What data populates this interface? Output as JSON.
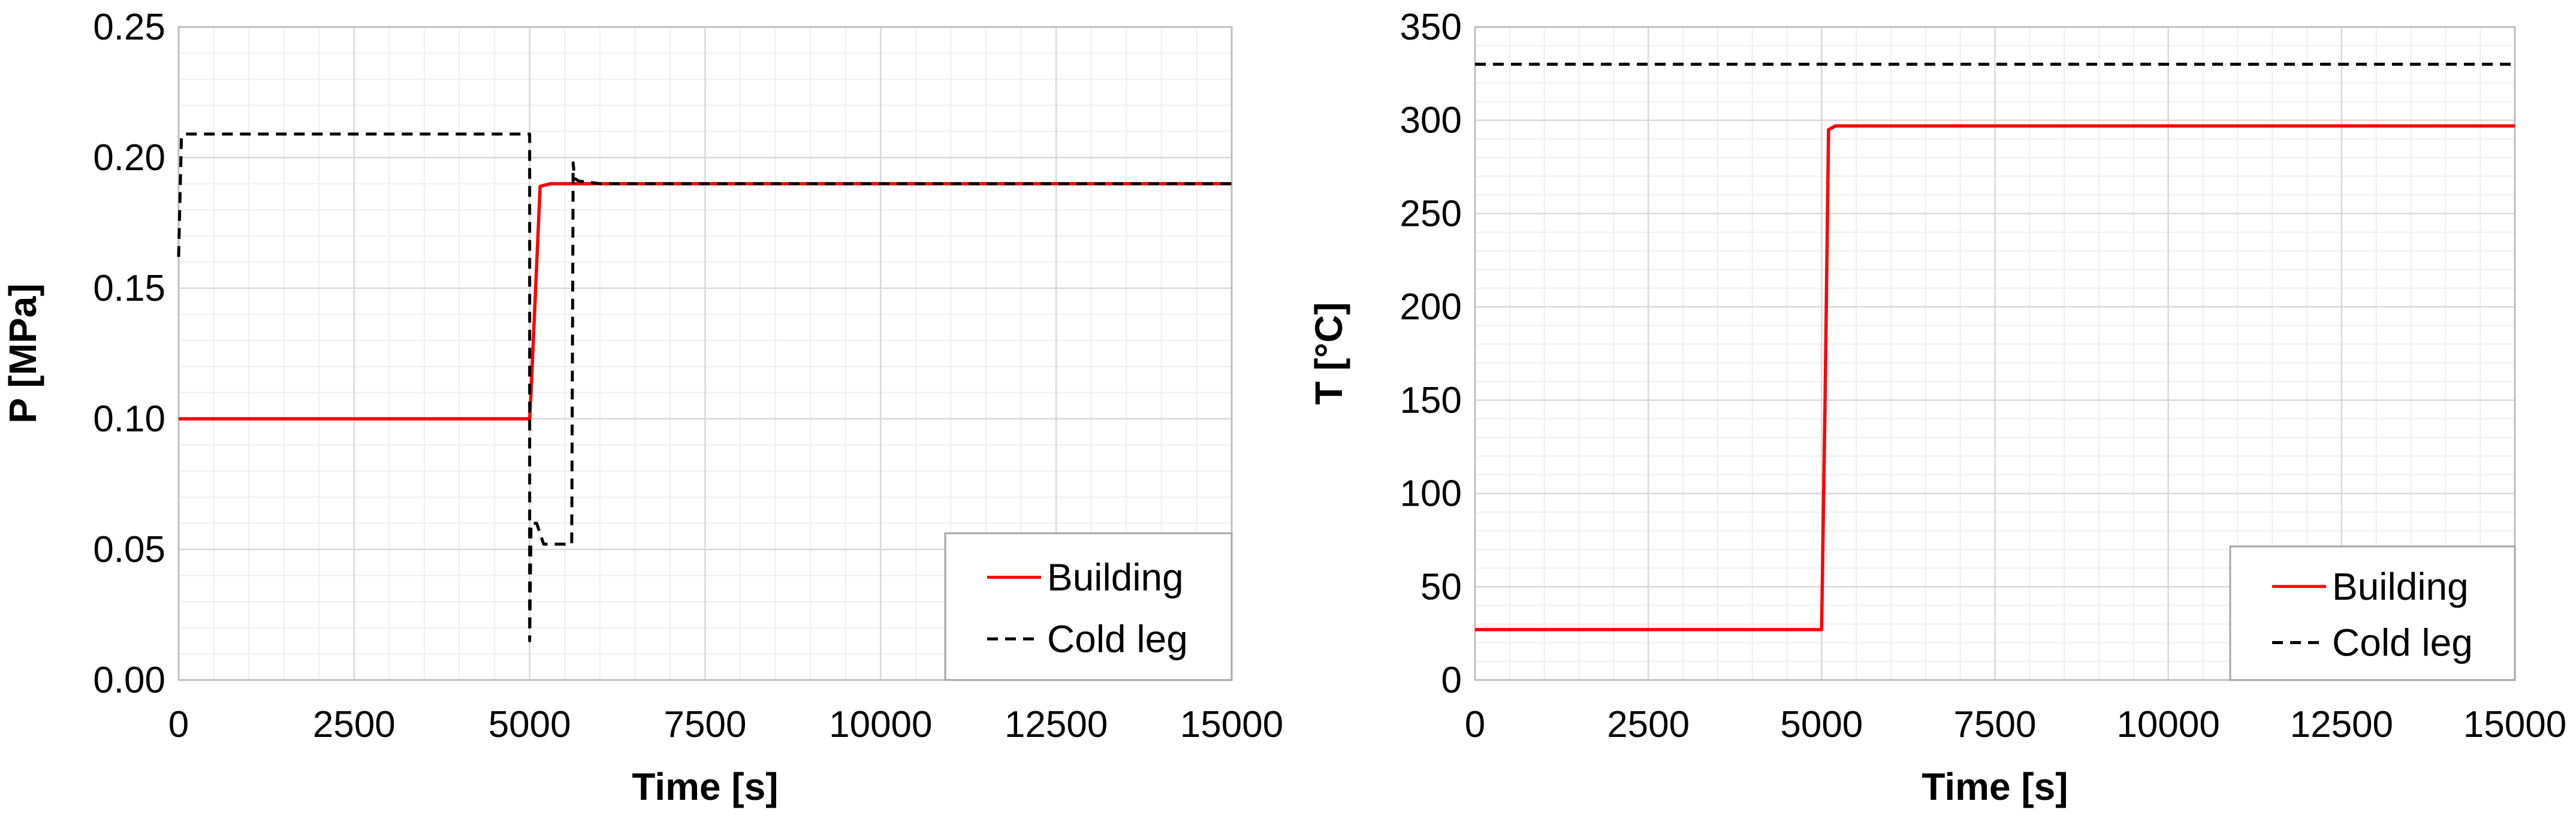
{
  "chart_data": [
    {
      "type": "line",
      "xlabel": "Time [s]",
      "ylabel": "P [MPa]",
      "xlim": [
        0,
        15000
      ],
      "ylim": [
        0,
        0.25
      ],
      "x_ticks": [
        0,
        2500,
        5000,
        7500,
        10000,
        12500,
        15000
      ],
      "x_tick_labels": [
        "0",
        "2500",
        "5000",
        "7500",
        "10000",
        "12500",
        "15000"
      ],
      "y_ticks": [
        0,
        0.05,
        0.1,
        0.15,
        0.2,
        0.25
      ],
      "y_tick_labels": [
        "0.00",
        "0.05",
        "0.10",
        "0.15",
        "0.20",
        "0.25"
      ],
      "grid": true,
      "legend_position": "bottom-right",
      "series": [
        {
          "name": "Building",
          "color": "#ff0000",
          "style": "solid",
          "x": [
            0,
            5000,
            5020,
            5150,
            5300,
            15000
          ],
          "y": [
            0.1,
            0.1,
            0.11,
            0.189,
            0.19,
            0.19
          ]
        },
        {
          "name": "Cold leg",
          "color": "#000000",
          "style": "dashed",
          "x": [
            0,
            40,
            80,
            5000,
            5000,
            5020,
            5100,
            5200,
            5300,
            5600,
            5620,
            5640,
            5700,
            6000,
            15000
          ],
          "y": [
            0.162,
            0.208,
            0.209,
            0.209,
            0.015,
            0.06,
            0.06,
            0.052,
            0.052,
            0.052,
            0.198,
            0.192,
            0.191,
            0.19,
            0.19
          ]
        }
      ]
    },
    {
      "type": "line",
      "xlabel": "Time [s]",
      "ylabel": "T [°C]",
      "xlim": [
        0,
        15000
      ],
      "ylim": [
        0,
        350
      ],
      "x_ticks": [
        0,
        2500,
        5000,
        7500,
        10000,
        12500,
        15000
      ],
      "x_tick_labels": [
        "0",
        "2500",
        "5000",
        "7500",
        "10000",
        "12500",
        "15000"
      ],
      "y_ticks": [
        0,
        50,
        100,
        150,
        200,
        250,
        300,
        350
      ],
      "y_tick_labels": [
        "0",
        "50",
        "100",
        "150",
        "200",
        "250",
        "300",
        "350"
      ],
      "grid": true,
      "legend_position": "bottom-right",
      "series": [
        {
          "name": "Building",
          "color": "#ff0000",
          "style": "solid",
          "x": [
            0,
            5000,
            5050,
            5100,
            5200,
            15000
          ],
          "y": [
            27,
            27,
            150,
            295,
            297,
            297
          ]
        },
        {
          "name": "Cold leg",
          "color": "#000000",
          "style": "dashed",
          "x": [
            0,
            15000
          ],
          "y": [
            330,
            330
          ]
        }
      ]
    }
  ]
}
